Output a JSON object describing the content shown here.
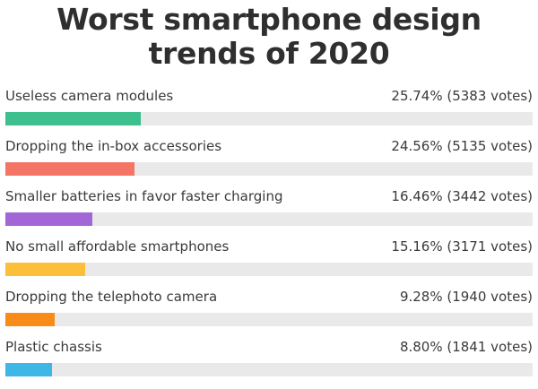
{
  "poll": {
    "title": "Worst smartphone design trends of 2020",
    "options": [
      {
        "label": "Useless camera modules",
        "result": "25.74% (5383 votes)",
        "percent": 25.74,
        "color": "#3dbf8e"
      },
      {
        "label": "Dropping the in-box accessories",
        "result": "24.56% (5135 votes)",
        "percent": 24.56,
        "color": "#f47566"
      },
      {
        "label": "Smaller batteries in favor faster charging",
        "result": "16.46% (3442 votes)",
        "percent": 16.46,
        "color": "#a366d6"
      },
      {
        "label": "No small affordable smartphones",
        "result": "15.16% (3171 votes)",
        "percent": 15.16,
        "color": "#fbbf3a"
      },
      {
        "label": "Dropping the telephoto camera",
        "result": "9.28% (1940 votes)",
        "percent": 9.28,
        "color": "#f98c18"
      },
      {
        "label": "Plastic chassis",
        "result": "8.80% (1841 votes)",
        "percent": 8.8,
        "color": "#3fb7e6"
      }
    ]
  }
}
